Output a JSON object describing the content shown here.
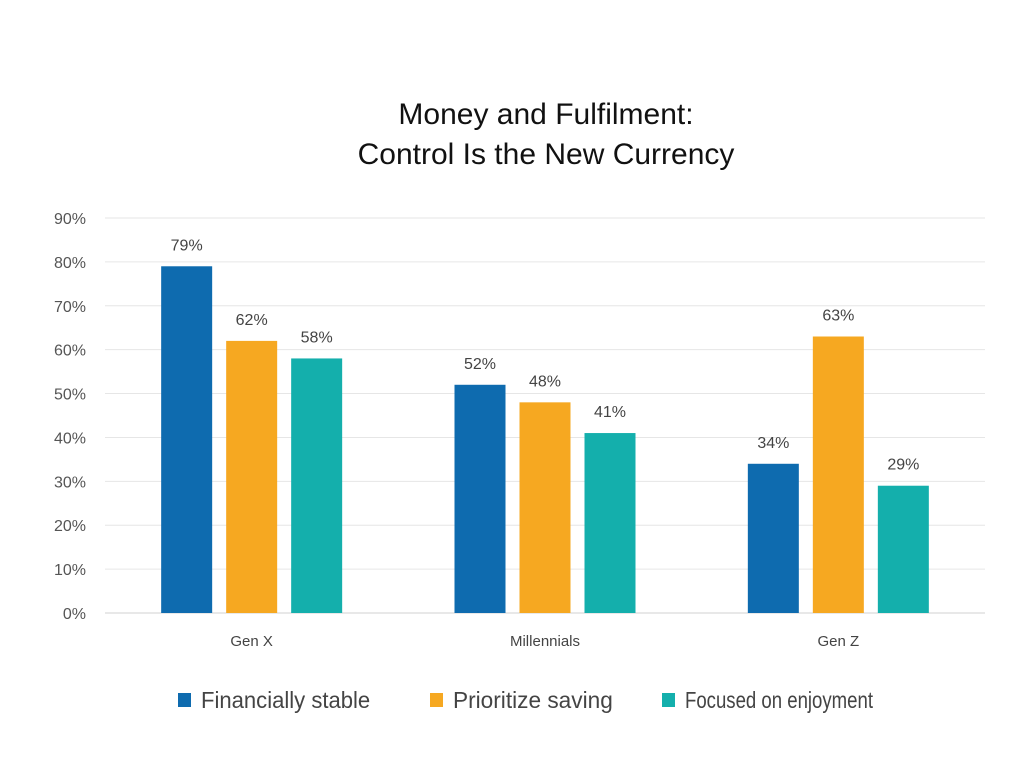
{
  "chart_data": {
    "type": "bar",
    "title_lines": [
      "Money and Fulfilment:",
      "Control Is the New Currency"
    ],
    "categories": [
      "Gen X",
      "Millennials",
      "Gen Z"
    ],
    "series": [
      {
        "name": "Financially stable",
        "values": [
          79,
          52,
          34
        ],
        "color": "#0E6BAF"
      },
      {
        "name": "Prioritize saving",
        "values": [
          62,
          48,
          63
        ],
        "color": "#F6A821"
      },
      {
        "name": "Focused on enjoyment",
        "values": [
          58,
          41,
          29
        ],
        "color": "#14AFAC"
      }
    ],
    "ylim": [
      0,
      90
    ],
    "yticks": [
      "0%",
      "10%",
      "20%",
      "30%",
      "40%",
      "50%",
      "60%",
      "70%",
      "80%",
      "90%"
    ],
    "value_suffix": "%",
    "grid": true,
    "legend_position": "bottom",
    "xlabel": "",
    "ylabel": ""
  }
}
